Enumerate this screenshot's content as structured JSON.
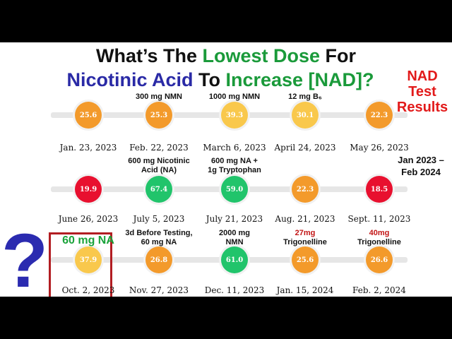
{
  "title": {
    "line1": {
      "p1": "What’s The ",
      "p2": "Lowest Dose",
      "p3": " For"
    },
    "line2": {
      "p1": "Nicotinic Acid",
      "p2": " To ",
      "p3": "Increase [NAD]?"
    }
  },
  "side": {
    "results": [
      "NAD",
      "Test",
      "Results"
    ],
    "range": [
      "Jan 2023 –",
      "Feb 2024"
    ]
  },
  "question_mark": "?",
  "colors": {
    "orange": "#f39a2b",
    "yellow": "#f9c84c",
    "green": "#21c46b",
    "red": "#e8102f",
    "title_green": "#1a9a3a",
    "title_blue": "#2a2aa6",
    "highlight_border": "#b21d22"
  },
  "rows": [
    {
      "tests": [
        {
          "value": "25.6",
          "date": "Jan. 23, 2023",
          "status": "orange",
          "label": ""
        },
        {
          "value": "25.3",
          "date": "Feb. 22, 2023",
          "status": "orange",
          "label": "300 mg NMN"
        },
        {
          "value": "39.3",
          "date": "March 6, 2023",
          "status": "yellow",
          "label": "1000 mg NMN"
        },
        {
          "value": "30.1",
          "date": "April 24, 2023",
          "status": "yellow",
          "label": "12 mg B₆"
        },
        {
          "value": "22.3",
          "date": "May 26, 2023",
          "status": "orange",
          "label": ""
        }
      ]
    },
    {
      "tests": [
        {
          "value": "19.9",
          "date": "June 26, 2023",
          "status": "red",
          "label": ""
        },
        {
          "value": "67.4",
          "date": "July 5, 2023",
          "status": "green",
          "label": "600 mg Nicotinic\nAcid (NA)"
        },
        {
          "value": "59.0",
          "date": "July 21, 2023",
          "status": "green",
          "label": "600 mg NA +\n1g Tryptophan"
        },
        {
          "value": "22.3",
          "date": "Aug. 21, 2023",
          "status": "orange",
          "label": ""
        },
        {
          "value": "18.5",
          "date": "Sept. 11, 2023",
          "status": "red",
          "label": ""
        }
      ]
    },
    {
      "tests": [
        {
          "value": "37.9",
          "date": "Oct. 2, 2023",
          "status": "yellow",
          "label": "60 mg NA",
          "highlight": true
        },
        {
          "value": "26.8",
          "date": "Nov. 27, 2023",
          "status": "orange",
          "label": "3d Before Testing,\n60 mg NA"
        },
        {
          "value": "61.0",
          "date": "Dec. 11, 2023",
          "status": "green",
          "label": "2000 mg\nNMN"
        },
        {
          "value": "25.6",
          "date": "Jan. 15, 2024",
          "status": "orange",
          "label": "27mg\nTrigonelline"
        },
        {
          "value": "26.6",
          "date": "Feb. 2, 2024",
          "status": "orange",
          "label": "40mg\nTrigonelline"
        }
      ]
    }
  ]
}
